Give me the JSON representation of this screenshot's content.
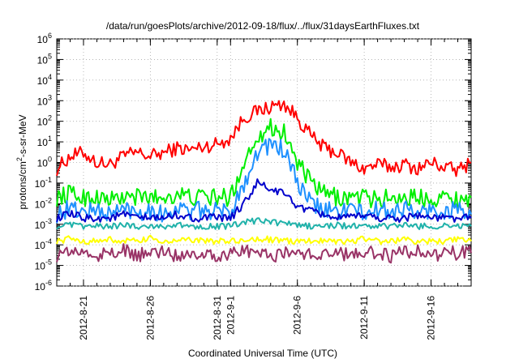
{
  "chart_data": {
    "type": "line",
    "title": "/data/run/goesPlots/archive/2012-09-18/flux/../flux/31daysEarthFluxes.txt",
    "xlabel": "Coordinated Universal Time (UTC)",
    "ylabel": "protons/cm2-s-sr-MeV",
    "ylabel_parts": {
      "before": "protons/cm",
      "sup": "2",
      "after": "-s-sr-MeV"
    },
    "yscale": "log",
    "ylim": [
      1e-06,
      1000000.0
    ],
    "y_ticks": [
      {
        "value": 1000000.0,
        "base": "10",
        "exp": "6"
      },
      {
        "value": 100000.0,
        "base": "10",
        "exp": "5"
      },
      {
        "value": 10000.0,
        "base": "10",
        "exp": "4"
      },
      {
        "value": 1000.0,
        "base": "10",
        "exp": "3"
      },
      {
        "value": 100.0,
        "base": "10",
        "exp": "2"
      },
      {
        "value": 10.0,
        "base": "10",
        "exp": "1"
      },
      {
        "value": 1.0,
        "base": "10",
        "exp": "0"
      },
      {
        "value": 0.1,
        "base": "10",
        "exp": "-1"
      },
      {
        "value": 0.01,
        "base": "10",
        "exp": "-2"
      },
      {
        "value": 0.001,
        "base": "10",
        "exp": "-3"
      },
      {
        "value": 0.0001,
        "base": "10",
        "exp": "-4"
      },
      {
        "value": 1e-05,
        "base": "10",
        "exp": "-5"
      },
      {
        "value": 1e-06,
        "base": "10",
        "exp": "-6"
      }
    ],
    "xlim": [
      "2012-08-19",
      "2012-09-19"
    ],
    "x_ticks": [
      "2012-8-21",
      "2012-8-26",
      "2012-8-31",
      "2012-9-1",
      "2012-9-6",
      "2012-9-11",
      "2012-9-16"
    ],
    "grid": true,
    "legend": "none",
    "series": [
      {
        "color": "#ff0000",
        "x": [
          "2012-08-19",
          "2012-08-20",
          "2012-08-21",
          "2012-08-22",
          "2012-08-23",
          "2012-08-24",
          "2012-08-25",
          "2012-08-26",
          "2012-08-27",
          "2012-08-28",
          "2012-08-29",
          "2012-08-30",
          "2012-08-31",
          "2012-09-01",
          "2012-09-02",
          "2012-09-03",
          "2012-09-04",
          "2012-09-05",
          "2012-09-06",
          "2012-09-07",
          "2012-09-08",
          "2012-09-09",
          "2012-09-10",
          "2012-09-11",
          "2012-09-12",
          "2012-09-13",
          "2012-09-14",
          "2012-09-15",
          "2012-09-16",
          "2012-09-17",
          "2012-09-18",
          "2012-09-19"
        ],
        "y": [
          0.5,
          2.0,
          3.0,
          1.0,
          0.8,
          2.0,
          3.0,
          2.0,
          3.0,
          5.0,
          4.0,
          6.0,
          8.0,
          15,
          150,
          300,
          500,
          700,
          150,
          20,
          5,
          3,
          1.0,
          0.5,
          0.8,
          0.6,
          0.8,
          0.5,
          1.0,
          0.6,
          0.4,
          1.0
        ]
      },
      {
        "color": "#00ee00",
        "x": [
          "2012-08-19",
          "2012-08-20",
          "2012-08-21",
          "2012-08-22",
          "2012-08-23",
          "2012-08-24",
          "2012-08-25",
          "2012-08-26",
          "2012-08-27",
          "2012-08-28",
          "2012-08-29",
          "2012-08-30",
          "2012-08-31",
          "2012-09-01",
          "2012-09-02",
          "2012-09-03",
          "2012-09-04",
          "2012-09-05",
          "2012-09-06",
          "2012-09-07",
          "2012-09-08",
          "2012-09-09",
          "2012-09-10",
          "2012-09-11",
          "2012-09-12",
          "2012-09-13",
          "2012-09-14",
          "2012-09-15",
          "2012-09-16",
          "2012-09-17",
          "2012-09-18",
          "2012-09-19"
        ],
        "y": [
          0.02,
          0.03,
          0.02,
          0.02,
          0.015,
          0.02,
          0.02,
          0.02,
          0.02,
          0.03,
          0.02,
          0.02,
          0.02,
          0.02,
          1.0,
          20,
          50,
          30,
          1.0,
          0.1,
          0.03,
          0.02,
          0.02,
          0.02,
          0.015,
          0.02,
          0.02,
          0.02,
          0.02,
          0.02,
          0.015,
          0.02
        ]
      },
      {
        "color": "#1e90ff",
        "x": [
          "2012-08-19",
          "2012-08-20",
          "2012-08-21",
          "2012-08-22",
          "2012-08-23",
          "2012-08-24",
          "2012-08-25",
          "2012-08-26",
          "2012-08-27",
          "2012-08-28",
          "2012-08-29",
          "2012-08-30",
          "2012-08-31",
          "2012-09-01",
          "2012-09-02",
          "2012-09-03",
          "2012-09-04",
          "2012-09-05",
          "2012-09-06",
          "2012-09-07",
          "2012-09-08",
          "2012-09-09",
          "2012-09-10",
          "2012-09-11",
          "2012-09-12",
          "2012-09-13",
          "2012-09-14",
          "2012-09-15",
          "2012-09-16",
          "2012-09-17",
          "2012-09-18",
          "2012-09-19"
        ],
        "y": [
          0.003,
          0.006,
          0.004,
          0.005,
          0.003,
          0.006,
          0.004,
          0.005,
          0.003,
          0.006,
          0.004,
          0.005,
          0.004,
          0.004,
          0.1,
          3,
          8,
          4,
          0.1,
          0.01,
          0.005,
          0.004,
          0.006,
          0.003,
          0.005,
          0.004,
          0.006,
          0.003,
          0.005,
          0.004,
          0.006,
          0.003
        ]
      },
      {
        "color": "#0000cc",
        "x": [
          "2012-08-19",
          "2012-08-20",
          "2012-08-21",
          "2012-08-22",
          "2012-08-23",
          "2012-08-24",
          "2012-08-25",
          "2012-08-26",
          "2012-08-27",
          "2012-08-28",
          "2012-08-29",
          "2012-08-30",
          "2012-08-31",
          "2012-09-01",
          "2012-09-02",
          "2012-09-03",
          "2012-09-04",
          "2012-09-05",
          "2012-09-06",
          "2012-09-07",
          "2012-09-08",
          "2012-09-09",
          "2012-09-10",
          "2012-09-11",
          "2012-09-12",
          "2012-09-13",
          "2012-09-14",
          "2012-09-15",
          "2012-09-16",
          "2012-09-17",
          "2012-09-18",
          "2012-09-19"
        ],
        "y": [
          0.002,
          0.003,
          0.002,
          0.002,
          0.002,
          0.003,
          0.002,
          0.002,
          0.002,
          0.003,
          0.002,
          0.002,
          0.002,
          0.002,
          0.01,
          0.1,
          0.05,
          0.03,
          0.008,
          0.004,
          0.003,
          0.002,
          0.002,
          0.003,
          0.002,
          0.002,
          0.002,
          0.003,
          0.002,
          0.002,
          0.002,
          0.002
        ]
      },
      {
        "color": "#20b2aa",
        "x": [
          "2012-08-19",
          "2012-08-20",
          "2012-08-21",
          "2012-08-22",
          "2012-08-23",
          "2012-08-24",
          "2012-08-25",
          "2012-08-26",
          "2012-08-27",
          "2012-08-28",
          "2012-08-29",
          "2012-08-30",
          "2012-08-31",
          "2012-09-01",
          "2012-09-02",
          "2012-09-03",
          "2012-09-04",
          "2012-09-05",
          "2012-09-06",
          "2012-09-07",
          "2012-09-08",
          "2012-09-09",
          "2012-09-10",
          "2012-09-11",
          "2012-09-12",
          "2012-09-13",
          "2012-09-14",
          "2012-09-15",
          "2012-09-16",
          "2012-09-17",
          "2012-09-18",
          "2012-09-19"
        ],
        "y": [
          0.0008,
          0.0009,
          0.0008,
          0.0008,
          0.0008,
          0.0009,
          0.0008,
          0.0008,
          0.0008,
          0.0009,
          0.0008,
          0.0008,
          0.0008,
          0.0008,
          0.0012,
          0.0015,
          0.0013,
          0.0011,
          0.0009,
          0.0008,
          0.0008,
          0.0009,
          0.0008,
          0.0008,
          0.0008,
          0.0008,
          0.0009,
          0.0008,
          0.0008,
          0.0008,
          0.0009,
          0.0008
        ]
      },
      {
        "color": "#ffff00",
        "x": [
          "2012-08-19",
          "2012-08-20",
          "2012-08-21",
          "2012-08-22",
          "2012-08-23",
          "2012-08-24",
          "2012-08-25",
          "2012-08-26",
          "2012-08-27",
          "2012-08-28",
          "2012-08-29",
          "2012-08-30",
          "2012-08-31",
          "2012-09-01",
          "2012-09-02",
          "2012-09-03",
          "2012-09-04",
          "2012-09-05",
          "2012-09-06",
          "2012-09-07",
          "2012-09-08",
          "2012-09-09",
          "2012-09-10",
          "2012-09-11",
          "2012-09-12",
          "2012-09-13",
          "2012-09-14",
          "2012-09-15",
          "2012-09-16",
          "2012-09-17",
          "2012-09-18",
          "2012-09-19"
        ],
        "y": [
          0.00015,
          0.0002,
          0.00015,
          0.00015,
          0.00018,
          0.00015,
          0.00015,
          0.0002,
          0.00015,
          0.00015,
          0.00018,
          0.00015,
          0.00015,
          0.00015,
          0.00015,
          0.0002,
          0.00018,
          0.00015,
          0.00015,
          0.00015,
          0.00018,
          0.00015,
          0.00015,
          0.0002,
          0.00015,
          0.00015,
          0.00018,
          0.00015,
          0.00015,
          0.00015,
          0.00018,
          0.00015
        ]
      },
      {
        "color": "#993366",
        "x": [
          "2012-08-19",
          "2012-08-20",
          "2012-08-21",
          "2012-08-22",
          "2012-08-23",
          "2012-08-24",
          "2012-08-25",
          "2012-08-26",
          "2012-08-27",
          "2012-08-28",
          "2012-08-29",
          "2012-08-30",
          "2012-08-31",
          "2012-09-01",
          "2012-09-02",
          "2012-09-03",
          "2012-09-04",
          "2012-09-05",
          "2012-09-06",
          "2012-09-07",
          "2012-09-08",
          "2012-09-09",
          "2012-09-10",
          "2012-09-11",
          "2012-09-12",
          "2012-09-13",
          "2012-09-14",
          "2012-09-15",
          "2012-09-16",
          "2012-09-17",
          "2012-09-18",
          "2012-09-19"
        ],
        "y": [
          3e-05,
          5e-05,
          4e-05,
          3e-05,
          4e-05,
          5e-05,
          3e-05,
          4e-05,
          5e-05,
          3e-05,
          4e-05,
          4e-05,
          3e-05,
          4e-05,
          5e-05,
          4e-05,
          3e-05,
          4e-05,
          5e-05,
          3e-05,
          4e-05,
          4e-05,
          3e-05,
          5e-05,
          4e-05,
          3e-05,
          4e-05,
          5e-05,
          3e-05,
          4e-05,
          4e-05,
          4e-05
        ]
      }
    ]
  }
}
